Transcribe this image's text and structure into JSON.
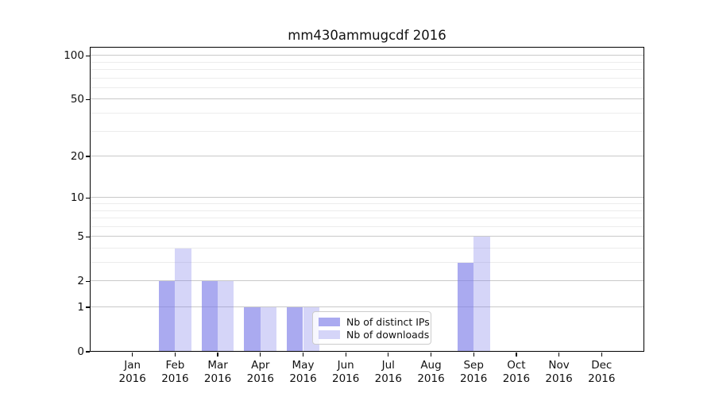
{
  "chart_data": {
    "type": "bar",
    "title": "mm430ammugcdf 2016",
    "xlabel": "",
    "ylabel": "",
    "x_axis": {
      "months": [
        "Jan",
        "Feb",
        "Mar",
        "Apr",
        "May",
        "Jun",
        "Jul",
        "Aug",
        "Sep",
        "Oct",
        "Nov",
        "Dec"
      ],
      "year": "2016",
      "xlim": [
        -1,
        12
      ]
    },
    "y_axis": {
      "scale": "log1p",
      "ylim": [
        0,
        115
      ],
      "major_ticks": [
        0,
        1,
        2,
        5,
        10,
        20,
        50,
        100
      ],
      "minor_gridlines": [
        3,
        4,
        6,
        7,
        8,
        9,
        30,
        40,
        60,
        70,
        80,
        90
      ],
      "grid": true
    },
    "series": [
      {
        "name": "Nb of distinct IPs",
        "fill": "rgba(125,125,232,0.65)",
        "values": [
          0,
          2,
          2,
          1,
          1,
          0,
          0,
          0,
          3,
          0,
          0,
          0
        ]
      },
      {
        "name": "Nb of downloads",
        "fill": "rgba(125,125,232,0.32)",
        "values": [
          0,
          4,
          2,
          1,
          1,
          0,
          0,
          0,
          5,
          0,
          0,
          0
        ]
      }
    ],
    "legend": {
      "position": "lower-center",
      "entries": [
        "Nb of distinct IPs",
        "Nb of downloads"
      ]
    },
    "colors": {
      "grid_major": "#c9c9c9",
      "grid_minor": "#ececec",
      "axis": "#000000",
      "background": "#ffffff",
      "legend_border": "#cccccc"
    }
  }
}
